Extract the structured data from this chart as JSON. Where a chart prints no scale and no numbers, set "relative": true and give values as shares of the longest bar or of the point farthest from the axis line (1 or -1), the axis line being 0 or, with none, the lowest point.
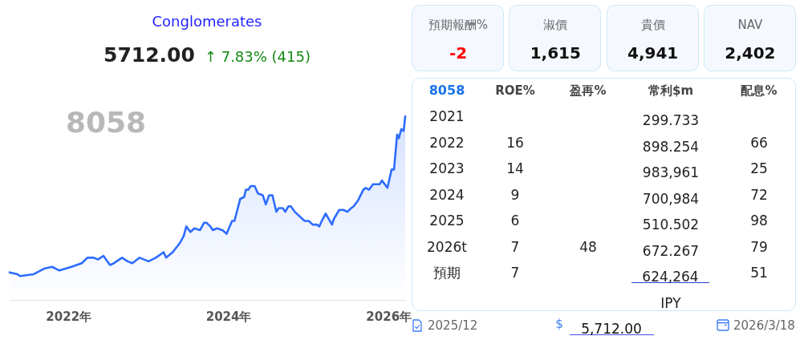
{
  "chart_data": [
    {
      "type": "area",
      "title": "Conglomerates",
      "subtitle": "5712.00",
      "annotations": [
        "↑ 7.83% (415)",
        "8058"
      ],
      "relative": true,
      "color": "#2e6cff",
      "x": [
        "2021-04-08",
        "2021-05-14",
        "2021-05-25",
        "2021-07-27",
        "2021-09-12",
        "2021-10-19",
        "2021-11-21",
        "2022-01-15",
        "2022-03-03",
        "2022-03-29",
        "2022-04-27",
        "2022-05-16",
        "2022-06-10",
        "2022-07-10",
        "2022-07-28",
        "2022-09-03",
        "2022-09-28",
        "2022-10-20",
        "2022-11-22",
        "2023-01-02",
        "2023-02-04",
        "2023-03-12",
        "2023-03-23",
        "2023-04-22",
        "2023-05-25",
        "2023-06-12",
        "2023-06-23",
        "2023-07-12",
        "2023-07-30",
        "2023-08-25",
        "2023-09-12",
        "2023-09-23",
        "2023-10-11",
        "2023-10-22",
        "2023-11-10",
        "2023-12-05",
        "2023-12-24",
        "2024-01-18",
        "2024-01-29",
        "2024-02-24",
        "2024-03-13",
        "2024-03-21",
        "2024-04-01",
        "2024-04-12",
        "2024-04-30",
        "2024-05-15",
        "2024-06-06",
        "2024-06-20",
        "2024-07-05",
        "2024-07-20",
        "2024-08-07",
        "2024-08-18",
        "2024-09-05",
        "2024-09-17",
        "2024-10-01",
        "2024-10-12",
        "2024-10-30",
        "2024-12-14",
        "2025-01-02",
        "2025-01-20",
        "2025-02-08",
        "2025-02-19",
        "2025-03-02",
        "2025-03-20",
        "2025-04-18",
        "2025-04-26",
        "2025-05-21",
        "2025-06-09",
        "2025-06-27",
        "2025-07-15",
        "2025-07-26",
        "2025-08-14",
        "2025-09-08",
        "2025-09-19",
        "2025-10-04",
        "2025-10-22",
        "2025-11-02",
        "2025-11-21",
        "2025-12-02",
        "2025-12-27",
        "2026-01-15",
        "2026-01-26",
        "2026-02-09",
        "2026-02-17",
        "2026-02-28",
        "2026-03-11",
        "2026-03-18"
      ],
      "values": [
        0.15,
        0.14,
        0.13,
        0.14,
        0.17,
        0.18,
        0.16,
        0.18,
        0.2,
        0.23,
        0.23,
        0.22,
        0.24,
        0.19,
        0.2,
        0.23,
        0.21,
        0.2,
        0.23,
        0.21,
        0.23,
        0.26,
        0.23,
        0.26,
        0.31,
        0.35,
        0.4,
        0.37,
        0.39,
        0.38,
        0.42,
        0.42,
        0.4,
        0.38,
        0.39,
        0.38,
        0.36,
        0.43,
        0.43,
        0.55,
        0.56,
        0.6,
        0.6,
        0.62,
        0.62,
        0.58,
        0.57,
        0.52,
        0.57,
        0.57,
        0.48,
        0.5,
        0.5,
        0.48,
        0.51,
        0.51,
        0.48,
        0.43,
        0.43,
        0.41,
        0.41,
        0.4,
        0.43,
        0.47,
        0.41,
        0.44,
        0.49,
        0.49,
        0.48,
        0.5,
        0.51,
        0.54,
        0.6,
        0.61,
        0.6,
        0.63,
        0.63,
        0.63,
        0.65,
        0.61,
        0.71,
        0.71,
        0.9,
        0.88,
        0.93,
        0.92,
        1
      ],
      "xlim": [
        "2021-04-08",
        "2026-03-18"
      ],
      "xticks": [
        {
          "value": "2022-01-01",
          "label": "2022年"
        },
        {
          "value": "2024-01-01",
          "label": "2024年"
        },
        {
          "value": "2026-01-01",
          "label": "2026年"
        }
      ]
    },
    {
      "type": "other",
      "categories": [
        "預期報酬%",
        "淑價",
        "貴價",
        "NAV"
      ],
      "values": [
        -2,
        1615,
        4941,
        2402
      ],
      "value_labels": [
        "-2",
        "1,615",
        "4,941",
        "2,402"
      ]
    },
    {
      "type": "heatmap",
      "title": "8058",
      "categories": [
        "ROE%",
        "盈再%",
        "常利$m",
        "配息%"
      ],
      "y_categories": [
        "2021",
        "2022",
        "2023",
        "2024",
        "2025",
        "2026t",
        "預期"
      ],
      "cells": [
        [
          null,
          null,
          299.733,
          null
        ],
        [
          16,
          null,
          898.254,
          66
        ],
        [
          14,
          null,
          983961,
          25
        ],
        [
          9,
          null,
          700984,
          72
        ],
        [
          6,
          null,
          510.502,
          98
        ],
        [
          7,
          48,
          672.267,
          79
        ],
        [
          7,
          null,
          624264,
          51
        ]
      ],
      "cell_labels": [
        [
          null,
          null,
          "299.733",
          null
        ],
        [
          "16",
          null,
          "898.254",
          "66"
        ],
        [
          "14",
          null,
          "983,961",
          "25"
        ],
        [
          "9",
          null,
          "700,984",
          "72"
        ],
        [
          "6",
          null,
          "510.502",
          "98"
        ],
        [
          "7",
          "48",
          "672.267",
          "79"
        ],
        [
          "7",
          null,
          "624,264",
          "51"
        ]
      ],
      "annotations": [
        "IPY",
        "2025/12",
        "$",
        "5,712.00",
        "2026/3/18"
      ]
    }
  ]
}
